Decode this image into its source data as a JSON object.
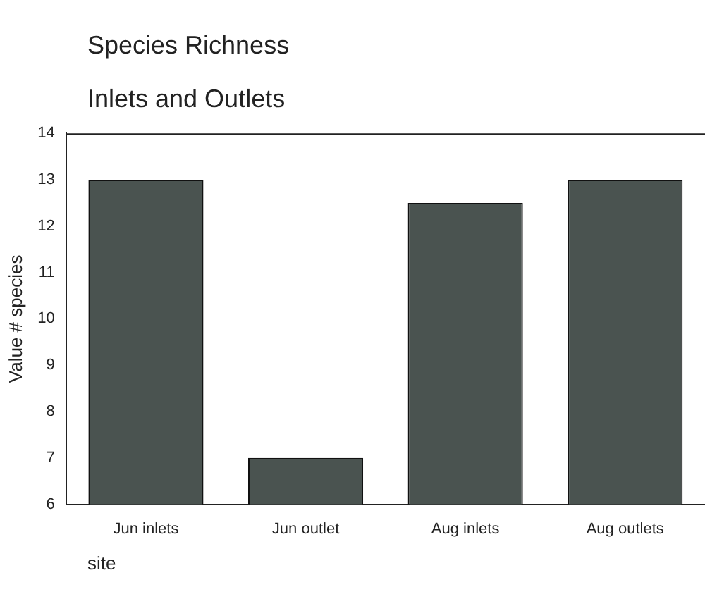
{
  "chart_data": {
    "type": "bar",
    "title": "Species Richness",
    "subtitle": "Inlets and Outlets",
    "xlabel": "site",
    "ylabel": "Value # species",
    "categories": [
      "Jun inlets",
      "Jun outlet",
      "Aug inlets",
      "Aug outlets"
    ],
    "values": [
      13,
      7,
      12.5,
      13
    ],
    "color": "#4a5350",
    "ylim": [
      6,
      14
    ],
    "yticks": [
      6,
      7,
      8,
      9,
      10,
      11,
      12,
      13,
      14
    ],
    "grid": false,
    "legend": false
  }
}
